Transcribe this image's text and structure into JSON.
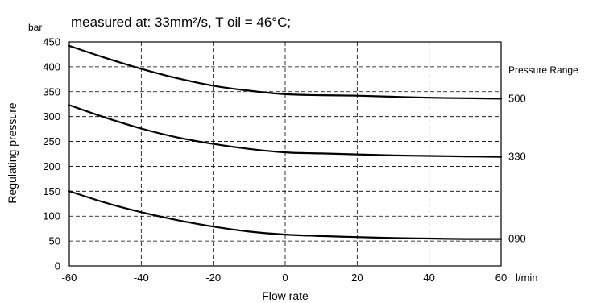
{
  "chart_data": {
    "type": "line",
    "title": "measured at: 33mm²/s, T oil = 46°C;",
    "y_unit": "bar",
    "x_unit": "l/min",
    "xlabel": "Flow rate",
    "ylabel": "Regulating pressure",
    "legend_title": "Pressure Range",
    "xlim": [
      -60,
      60
    ],
    "ylim": [
      0,
      450
    ],
    "x_ticks": [
      -60,
      -40,
      -20,
      0,
      20,
      40,
      60
    ],
    "y_ticks": [
      0,
      50,
      100,
      150,
      200,
      250,
      300,
      350,
      400,
      450
    ],
    "grid": true,
    "series": [
      {
        "name": "500",
        "x": [
          -60,
          -50,
          -40,
          -30,
          -20,
          -10,
          0,
          10,
          20,
          30,
          40,
          50,
          60
        ],
        "y": [
          442,
          418,
          396,
          377,
          362,
          352,
          345,
          343,
          342,
          340,
          338,
          337,
          336
        ]
      },
      {
        "name": "330",
        "x": [
          -60,
          -50,
          -40,
          -30,
          -20,
          -10,
          0,
          10,
          20,
          30,
          40,
          50,
          60
        ],
        "y": [
          323,
          298,
          276,
          258,
          245,
          235,
          228,
          226,
          224,
          222,
          221,
          220,
          219
        ]
      },
      {
        "name": "090",
        "x": [
          -60,
          -50,
          -40,
          -30,
          -20,
          -10,
          0,
          10,
          20,
          30,
          40,
          50,
          60
        ],
        "y": [
          150,
          127,
          108,
          92,
          79,
          69,
          63,
          60,
          58,
          56,
          55,
          54,
          54
        ]
      }
    ]
  }
}
